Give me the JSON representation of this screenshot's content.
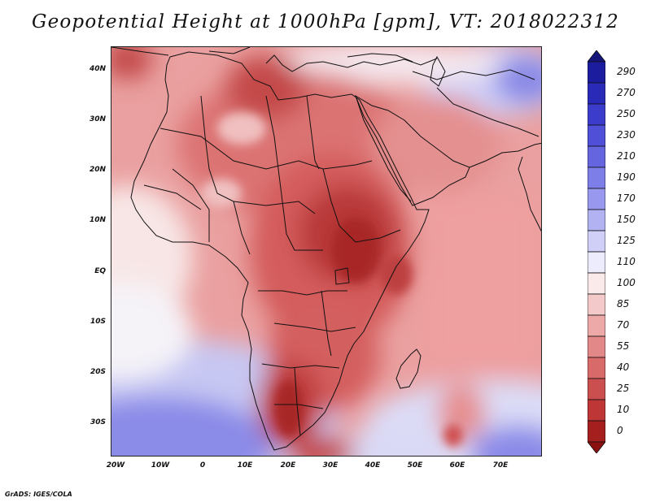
{
  "title": "Geopotential Height at 1000hPa [gpm], VT: 2018022312",
  "footer": "GrADS: IGES/COLA",
  "lat_labels": [
    "40N",
    "30N",
    "20N",
    "10N",
    "EQ",
    "10S",
    "20S",
    "30S"
  ],
  "lon_labels": [
    "20W",
    "10W",
    "0",
    "10E",
    "20E",
    "30E",
    "40E",
    "50E",
    "60E",
    "70E"
  ],
  "colorbar": {
    "levels": [
      "290",
      "270",
      "250",
      "230",
      "210",
      "190",
      "170",
      "150",
      "125",
      "110",
      "100",
      "85",
      "70",
      "55",
      "40",
      "25",
      "10",
      "0"
    ],
    "colors": [
      "#1c1c9e",
      "#2a2ab8",
      "#3b3bcc",
      "#4f4fd8",
      "#6565e0",
      "#7e7ee8",
      "#9898ee",
      "#b2b2f3",
      "#cfcff8",
      "#ececfc",
      "#fbeaea",
      "#f4c9c9",
      "#eda8a8",
      "#e38888",
      "#d86a6a",
      "#cc4f4f",
      "#bf3636",
      "#a51f1f"
    ],
    "top_color": "#15157a",
    "bottom_color": "#8b1010"
  },
  "chart_data": {
    "type": "heatmap",
    "title": "Geopotential Height at 1000hPa [gpm], VT: 2018022312",
    "variable": "Geopotential Height",
    "units": "gpm",
    "pressure_level_hPa": 1000,
    "valid_time": "2018022312",
    "lon_range": [
      -22,
      80
    ],
    "lat_range": [
      -37,
      45
    ],
    "contour_levels": [
      0,
      10,
      25,
      40,
      55,
      70,
      85,
      100,
      110,
      125,
      150,
      170,
      190,
      210,
      230,
      250,
      270,
      290
    ]
  }
}
